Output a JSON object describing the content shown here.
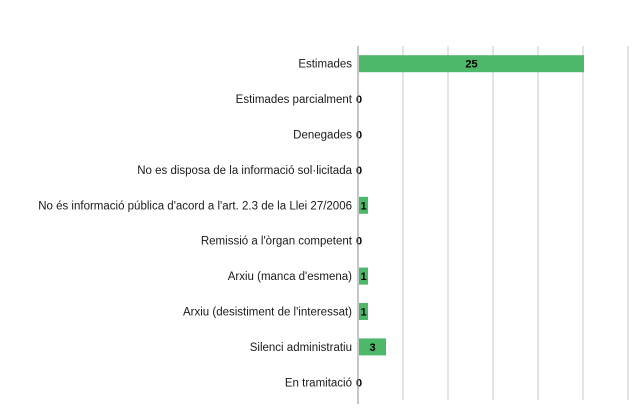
{
  "chart_data": {
    "type": "bar",
    "orientation": "horizontal",
    "categories": [
      "Estimades",
      "Estimades parcialment",
      "Denegades",
      "No es disposa de la informació sol·licitada",
      "No és informació pública d'acord a l'art. 2.3 de la Llei 27/2006",
      "Remissió a l'òrgan competent",
      "Arxiu (manca d'esmena)",
      "Arxiu (desistiment de l'interessat)",
      "Silenci administratiu",
      "En tramitació"
    ],
    "values": [
      25,
      0,
      0,
      0,
      1,
      0,
      1,
      1,
      3,
      0
    ],
    "value_labels": [
      "25",
      "0",
      "0",
      "0",
      "1",
      "0",
      "1",
      "1",
      "3",
      "0"
    ],
    "xlim": [
      0,
      30
    ],
    "grid": true,
    "bar_color": "#4db86a",
    "gridline_color": "#c8c8c8",
    "axis_color": "#8c8c8c",
    "legend": "none"
  }
}
